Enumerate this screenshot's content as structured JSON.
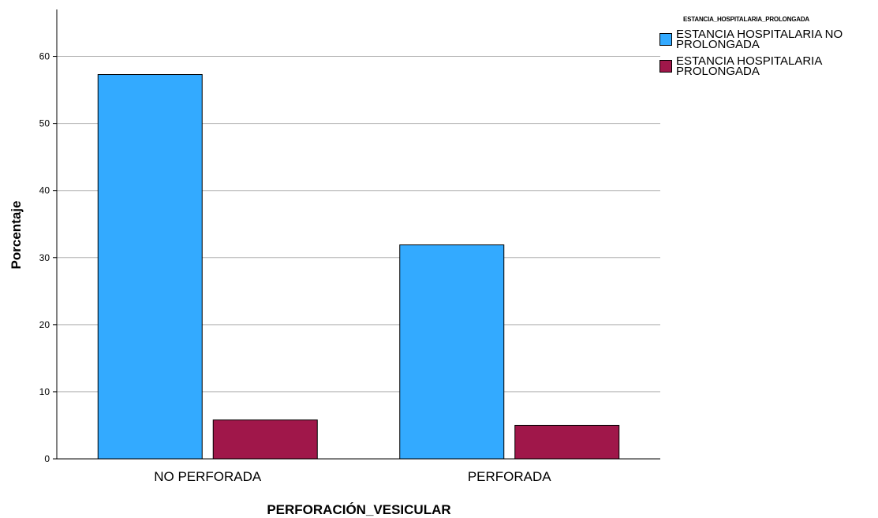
{
  "chart_data": {
    "type": "bar",
    "title": "",
    "xlabel": "PERFORACIÓN_VESICULAR",
    "ylabel": "Porcentaje",
    "categories": [
      "NO PERFORADA",
      "PERFORADA"
    ],
    "series": [
      {
        "name": "ESTANCIA HOSPITALARIA NO PROLONGADA",
        "values": [
          57.3,
          31.9
        ],
        "color": "#33aaff"
      },
      {
        "name": "ESTANCIA HOSPITALARIA PROLONGADA",
        "values": [
          5.8,
          5.0
        ],
        "color": "#a0174a"
      }
    ],
    "ylim": [
      0,
      67
    ],
    "yticks": [
      0,
      10,
      20,
      30,
      40,
      50,
      60
    ],
    "grid": true,
    "legend": {
      "title": "ESTANCIA_HOSPITALARIA_PROLONGADA",
      "placement": "right"
    }
  }
}
